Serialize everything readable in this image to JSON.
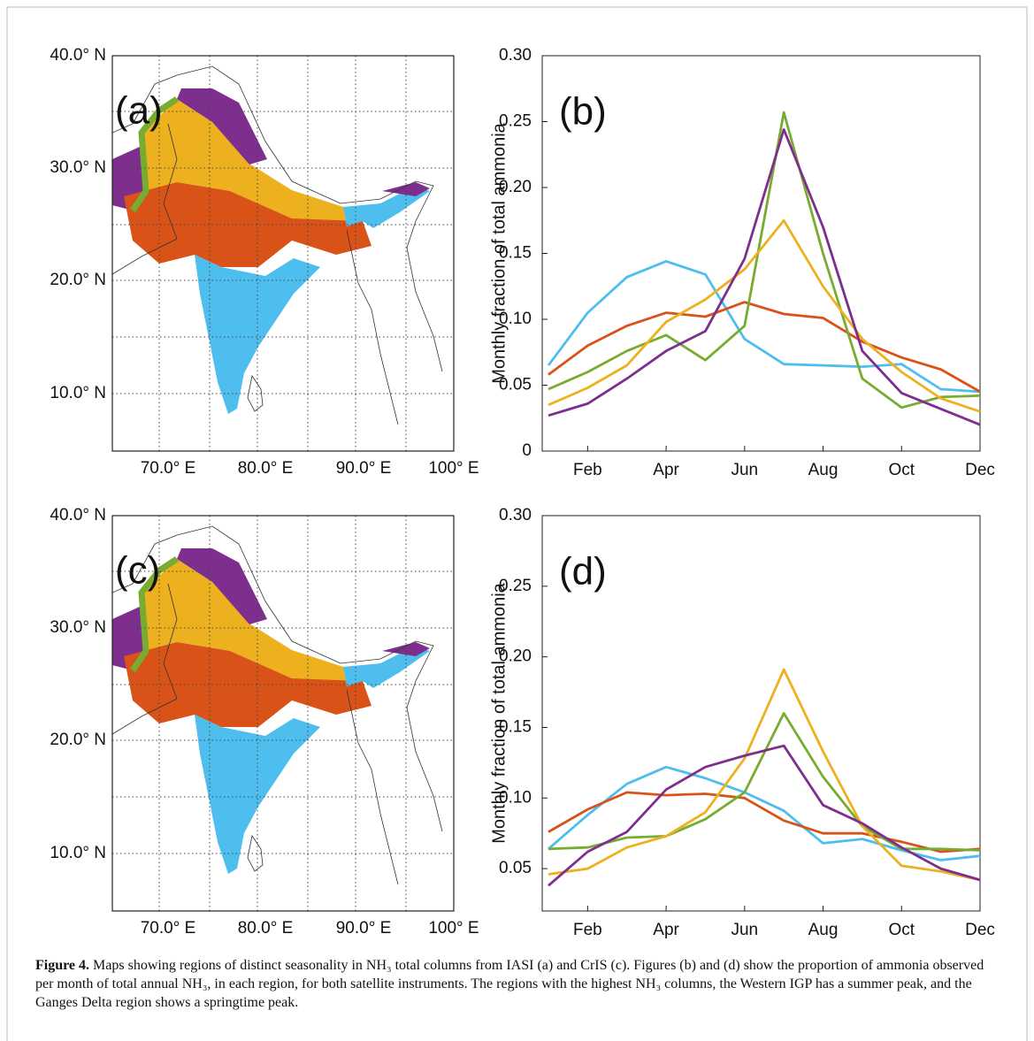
{
  "maps": [
    {
      "label": "(a)",
      "lat_labels": [
        "40.0° N",
        "30.0° N",
        "20.0° N",
        "10.0° N"
      ],
      "lon_labels": [
        "70.0° E",
        "80.0° E",
        "90.0° E",
        "100° E"
      ]
    },
    {
      "label": "(c)",
      "lat_labels": [
        "40.0° N",
        "30.0° N",
        "20.0° N",
        "10.0° N"
      ],
      "lon_labels": [
        "70.0° E",
        "80.0° E",
        "90.0° E",
        "100° E"
      ]
    }
  ],
  "chart_data": [
    {
      "type": "line",
      "panel_label": "(b)",
      "ylabel": "Monthly fraction of total ammonia",
      "categories": [
        null,
        "Feb",
        null,
        "Apr",
        null,
        "Jun",
        null,
        "Aug",
        null,
        "Oct",
        null,
        "Dec"
      ],
      "ylim": [
        0,
        0.3
      ],
      "yticks": [
        0,
        0.05,
        {
          "value": 0.1,
          "label": "0.10"
        },
        0.15,
        {
          "value": 0.2,
          "label": "0.20"
        },
        0.25,
        {
          "value": 0.3,
          "label": "0.30"
        }
      ],
      "series": [
        {
          "color": "#4dbeee",
          "values": [
            0.065,
            0.105,
            0.132,
            0.144,
            0.134,
            0.085,
            0.066,
            0.065,
            0.064,
            0.066,
            0.047,
            0.045
          ]
        },
        {
          "color": "#d95319",
          "values": [
            0.058,
            0.08,
            0.095,
            0.105,
            0.102,
            0.113,
            0.104,
            0.101,
            0.083,
            0.071,
            0.062,
            0.045
          ]
        },
        {
          "color": "#77ac30",
          "values": [
            0.047,
            0.06,
            0.076,
            0.088,
            0.069,
            0.095,
            0.257,
            0.15,
            0.055,
            0.033,
            0.041,
            0.042
          ]
        },
        {
          "color": "#edb120",
          "values": [
            0.035,
            0.048,
            0.065,
            0.098,
            0.115,
            0.138,
            0.175,
            0.125,
            0.085,
            0.06,
            0.04,
            0.03
          ]
        },
        {
          "color": "#7e2f8e",
          "values": [
            0.027,
            0.036,
            0.055,
            0.076,
            0.091,
            0.146,
            0.244,
            0.17,
            0.076,
            0.044,
            0.032,
            0.02
          ]
        }
      ]
    },
    {
      "type": "line",
      "panel_label": "(d)",
      "ylabel": "Monthly fraction of total ammonia",
      "categories": [
        null,
        "Feb",
        null,
        "Apr",
        null,
        "Jun",
        null,
        "Aug",
        null,
        "Oct",
        null,
        "Dec"
      ],
      "ylim": [
        0.02,
        0.3
      ],
      "yticks": [
        0.05,
        {
          "value": 0.1,
          "label": "0.10"
        },
        0.15,
        {
          "value": 0.2,
          "label": "0.20"
        },
        0.25,
        {
          "value": 0.3,
          "label": "0.30"
        }
      ],
      "series": [
        {
          "color": "#4dbeee",
          "values": [
            0.064,
            0.088,
            0.11,
            0.122,
            0.114,
            0.104,
            0.091,
            0.068,
            0.071,
            0.063,
            0.056,
            0.059
          ]
        },
        {
          "color": "#d95319",
          "values": [
            0.076,
            0.092,
            0.104,
            0.102,
            0.103,
            0.1,
            0.084,
            0.075,
            0.075,
            0.069,
            0.062,
            0.064
          ]
        },
        {
          "color": "#77ac30",
          "values": [
            0.064,
            0.065,
            0.072,
            0.073,
            0.085,
            0.104,
            0.16,
            0.115,
            0.08,
            0.064,
            0.064,
            0.063
          ]
        },
        {
          "color": "#edb120",
          "values": [
            0.046,
            0.05,
            0.065,
            0.073,
            0.09,
            0.128,
            0.191,
            0.133,
            0.08,
            0.052,
            0.048,
            0.042
          ]
        },
        {
          "color": "#7e2f8e",
          "values": [
            0.038,
            0.062,
            0.076,
            0.106,
            0.122,
            0.13,
            0.137,
            0.095,
            0.082,
            0.065,
            0.05,
            0.042
          ]
        }
      ]
    }
  ],
  "caption": {
    "label": "Figure 4.",
    "text": "Maps showing regions of distinct seasonality in NH₃ total columns from IASI (a) and CrIS (c). Figures (b) and (d) show the proportion of ammonia observed per month of total annual NH₃, in each region, for both satellite instruments. The regions with the highest NH₃ columns, the Western IGP has a summer peak, and the Ganges Delta region shows a springtime peak."
  }
}
